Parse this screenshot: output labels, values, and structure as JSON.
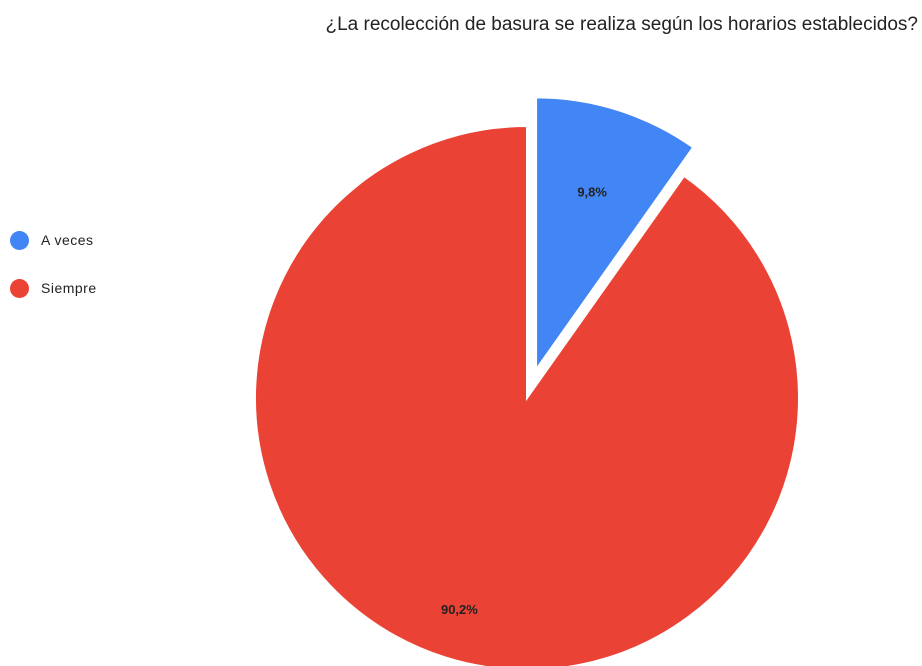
{
  "chart_data": {
    "type": "pie",
    "title": "¿La recolección de basura se realiza según los horarios establecidos?",
    "slices": [
      {
        "label": "A veces",
        "value": 9.8,
        "display": "9,8%",
        "color": "#4285f4",
        "exploded": true
      },
      {
        "label": "Siempre",
        "value": 90.2,
        "display": "90,2%",
        "color": "#ea4335",
        "exploded": false
      }
    ],
    "legend_position": "left"
  }
}
